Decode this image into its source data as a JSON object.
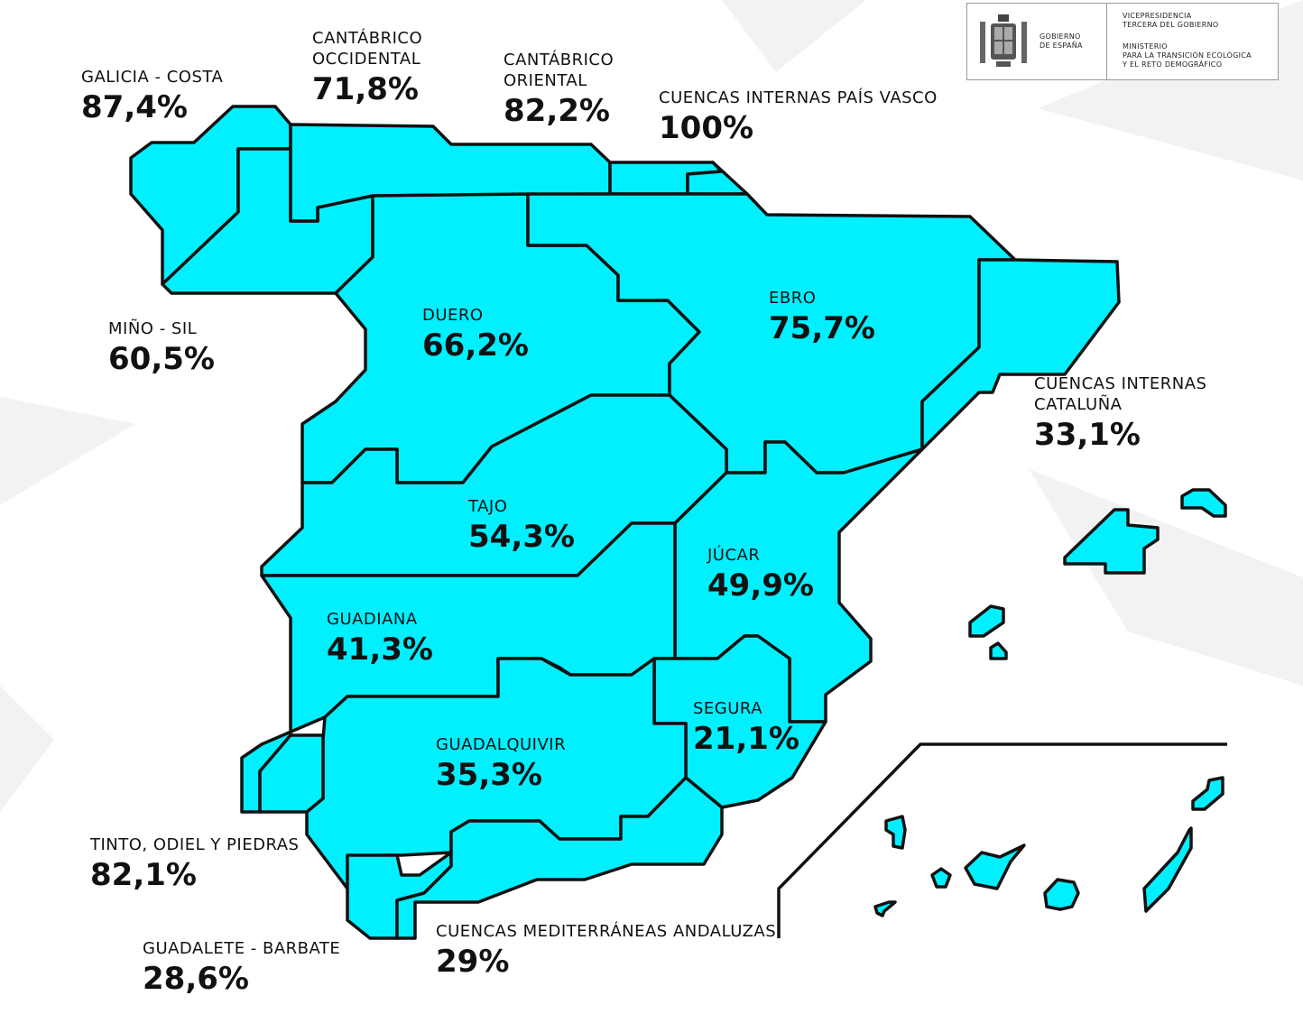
{
  "header": {
    "gov_logo": {
      "government": "GOBIERNO\nDE ESPAÑA",
      "vicepresidency": "VICEPRESIDENCIA\nTERCERA DEL GOBIERNO",
      "ministry": "MINISTERIO\nPARA LA TRANSICIÓN ECOLÓGICA\nY EL RETO DEMOGRÁFICO",
      "crest_icon": "spain-coat-of-arms-icon"
    }
  },
  "map": {
    "fill_color": "#00f0ff",
    "border_color": "#111111",
    "basins": [
      {
        "id": "galicia-costa",
        "name": "GALICIA - COSTA",
        "value": "87,4%"
      },
      {
        "id": "cantabrico-occidental",
        "name": "CANTÁBRICO\nOCCIDENTAL",
        "value": "71,8%"
      },
      {
        "id": "cantabrico-oriental",
        "name": "CANTÁBRICO\nORIENTAL",
        "value": "82,2%"
      },
      {
        "id": "pais-vasco",
        "name": "CUENCAS INTERNAS PAÍS VASCO",
        "value": "100%"
      },
      {
        "id": "mino-sil",
        "name": "MIÑO - SIL",
        "value": "60,5%"
      },
      {
        "id": "duero",
        "name": "DUERO",
        "value": "66,2%"
      },
      {
        "id": "ebro",
        "name": "EBRO",
        "value": "75,7%"
      },
      {
        "id": "cataluna",
        "name": "CUENCAS INTERNAS\nCATALUÑA",
        "value": "33,1%"
      },
      {
        "id": "tajo",
        "name": "TAJO",
        "value": "54,3%"
      },
      {
        "id": "jucar",
        "name": "JÚCAR",
        "value": "49,9%"
      },
      {
        "id": "guadiana",
        "name": "GUADIANA",
        "value": "41,3%"
      },
      {
        "id": "segura",
        "name": "SEGURA",
        "value": "21,1%"
      },
      {
        "id": "guadalquivir",
        "name": "GUADALQUIVIR",
        "value": "35,3%"
      },
      {
        "id": "tinto-odiel-piedras",
        "name": "TINTO, ODIEL Y PIEDRAS",
        "value": "82,1%"
      },
      {
        "id": "mediterraneas-andaluzas",
        "name": "CUENCAS MEDITERRÁNEAS ANDALUZAS",
        "value": "29%"
      },
      {
        "id": "guadalete-barbate",
        "name": "GUADALETE - BARBATE",
        "value": "28,6%"
      }
    ]
  }
}
